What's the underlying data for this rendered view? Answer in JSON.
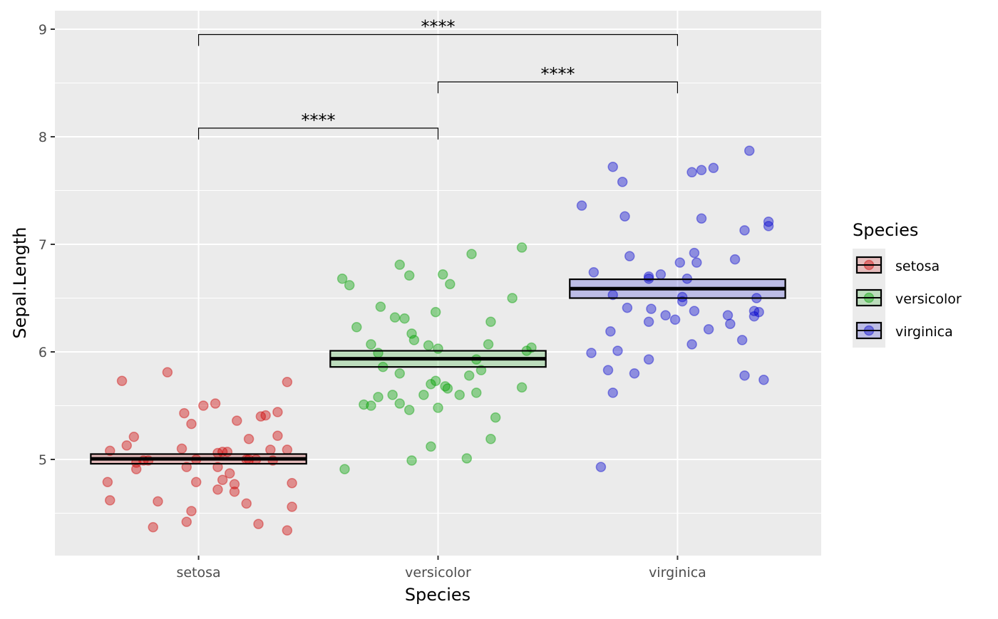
{
  "chart_data": {
    "type": "scatter",
    "subtype": "jitter with mean crossbar and significance brackets",
    "xlabel": "Species",
    "ylabel": "Sepal.Length",
    "categories": [
      "setosa",
      "versicolor",
      "virginica"
    ],
    "xlim": [
      0.4,
      3.6
    ],
    "ylim": [
      4.106,
      9.172
    ],
    "yticks": [
      5,
      6,
      7,
      8,
      9
    ],
    "ytick_labels": [
      "5",
      "6",
      "7",
      "8",
      "9"
    ],
    "grid": true,
    "legend": {
      "title": "Species",
      "placement": "right",
      "entries": [
        "setosa",
        "versicolor",
        "virginica"
      ]
    },
    "colors": {
      "setosa": "#CD0000",
      "versicolor": "#00A000",
      "virginica": "#0000CD",
      "panel": "#EBEBEB",
      "grid": "#FFFFFF"
    },
    "crossbars": [
      {
        "group": "setosa",
        "mean": 5.006,
        "lower": 4.96,
        "upper": 5.05
      },
      {
        "group": "versicolor",
        "mean": 5.936,
        "lower": 5.86,
        "upper": 6.01
      },
      {
        "group": "virginica",
        "mean": 6.588,
        "lower": 6.5,
        "upper": 6.675
      }
    ],
    "comparisons": [
      {
        "from": 1,
        "to": 2,
        "y": 8.08,
        "label": "****"
      },
      {
        "from": 2,
        "to": 3,
        "y": 8.51,
        "label": "****"
      },
      {
        "from": 1,
        "to": 3,
        "y": 8.95,
        "label": "****"
      }
    ],
    "series": [
      {
        "name": "setosa",
        "points": [
          [
            0.68,
            5.73
          ],
          [
            0.87,
            5.81
          ],
          [
            0.63,
            5.08
          ],
          [
            0.7,
            5.13
          ],
          [
            0.73,
            5.21
          ],
          [
            0.93,
            5.1
          ],
          [
            0.94,
            5.43
          ],
          [
            0.97,
            5.33
          ],
          [
            1.02,
            5.5
          ],
          [
            1.07,
            5.52
          ],
          [
            1.16,
            5.36
          ],
          [
            1.26,
            5.4
          ],
          [
            1.28,
            5.41
          ],
          [
            1.33,
            5.44
          ],
          [
            1.37,
            5.72
          ],
          [
            1.33,
            5.22
          ],
          [
            1.21,
            5.19
          ],
          [
            1.08,
            5.06
          ],
          [
            1.1,
            5.07
          ],
          [
            1.12,
            5.07
          ],
          [
            1.21,
            5.0
          ],
          [
            1.24,
            5.0
          ],
          [
            1.3,
            5.09
          ],
          [
            1.37,
            5.09
          ],
          [
            0.74,
            4.97
          ],
          [
            0.77,
            4.99
          ],
          [
            0.79,
            4.99
          ],
          [
            0.74,
            4.91
          ],
          [
            0.95,
            4.93
          ],
          [
            1.08,
            4.93
          ],
          [
            0.62,
            4.79
          ],
          [
            0.63,
            4.62
          ],
          [
            0.83,
            4.61
          ],
          [
            0.81,
            4.37
          ],
          [
            0.95,
            4.42
          ],
          [
            0.97,
            4.52
          ],
          [
            0.99,
            4.79
          ],
          [
            1.08,
            4.72
          ],
          [
            1.1,
            4.81
          ],
          [
            1.13,
            4.87
          ],
          [
            1.15,
            4.77
          ],
          [
            1.15,
            4.7
          ],
          [
            1.2,
            4.59
          ],
          [
            1.25,
            4.4
          ],
          [
            1.31,
            4.99
          ],
          [
            1.37,
            4.34
          ],
          [
            1.39,
            4.78
          ],
          [
            1.39,
            4.56
          ],
          [
            0.99,
            5.0
          ],
          [
            1.2,
            5.0
          ]
        ]
      },
      {
        "name": "versicolor",
        "points": [
          [
            1.6,
            6.68
          ],
          [
            1.63,
            6.62
          ],
          [
            1.66,
            6.23
          ],
          [
            1.76,
            6.42
          ],
          [
            1.84,
            6.81
          ],
          [
            1.88,
            6.71
          ],
          [
            1.82,
            6.32
          ],
          [
            1.86,
            6.31
          ],
          [
            1.89,
            6.17
          ],
          [
            1.9,
            6.11
          ],
          [
            1.99,
            6.37
          ],
          [
            2.02,
            6.72
          ],
          [
            2.05,
            6.63
          ],
          [
            2.14,
            6.91
          ],
          [
            2.35,
            6.97
          ],
          [
            2.31,
            6.5
          ],
          [
            2.22,
            6.28
          ],
          [
            2.21,
            6.07
          ],
          [
            2.39,
            6.04
          ],
          [
            2.37,
            6.01
          ],
          [
            1.72,
            6.07
          ],
          [
            1.75,
            5.99
          ],
          [
            1.77,
            5.86
          ],
          [
            1.84,
            5.8
          ],
          [
            1.96,
            6.06
          ],
          [
            2.0,
            6.03
          ],
          [
            2.16,
            5.93
          ],
          [
            2.18,
            5.83
          ],
          [
            2.13,
            5.78
          ],
          [
            2.03,
            5.68
          ],
          [
            2.04,
            5.66
          ],
          [
            1.99,
            5.73
          ],
          [
            1.97,
            5.7
          ],
          [
            1.94,
            5.6
          ],
          [
            2.09,
            5.6
          ],
          [
            2.16,
            5.62
          ],
          [
            1.75,
            5.58
          ],
          [
            1.81,
            5.6
          ],
          [
            1.69,
            5.51
          ],
          [
            1.72,
            5.5
          ],
          [
            1.84,
            5.52
          ],
          [
            1.88,
            5.46
          ],
          [
            2.0,
            5.48
          ],
          [
            2.24,
            5.39
          ],
          [
            2.22,
            5.19
          ],
          [
            1.97,
            5.12
          ],
          [
            1.89,
            4.99
          ],
          [
            2.12,
            5.01
          ],
          [
            1.61,
            4.91
          ],
          [
            2.35,
            5.67
          ]
        ]
      },
      {
        "name": "virginica",
        "points": [
          [
            2.6,
            7.36
          ],
          [
            2.73,
            7.72
          ],
          [
            2.77,
            7.58
          ],
          [
            2.78,
            7.26
          ],
          [
            2.65,
            6.74
          ],
          [
            2.8,
            6.89
          ],
          [
            2.73,
            6.53
          ],
          [
            2.79,
            6.41
          ],
          [
            2.88,
            6.68
          ],
          [
            2.88,
            6.7
          ],
          [
            2.93,
            6.72
          ],
          [
            2.89,
            6.4
          ],
          [
            2.88,
            6.28
          ],
          [
            2.95,
            6.34
          ],
          [
            2.99,
            6.3
          ],
          [
            3.01,
            6.83
          ],
          [
            3.04,
            6.68
          ],
          [
            3.02,
            6.51
          ],
          [
            3.02,
            6.47
          ],
          [
            3.07,
            6.92
          ],
          [
            3.08,
            6.83
          ],
          [
            3.07,
            6.38
          ],
          [
            3.13,
            6.21
          ],
          [
            3.06,
            6.07
          ],
          [
            3.06,
            7.67
          ],
          [
            3.1,
            7.69
          ],
          [
            3.15,
            7.71
          ],
          [
            3.1,
            7.24
          ],
          [
            3.3,
            7.87
          ],
          [
            3.28,
            7.13
          ],
          [
            3.38,
            7.21
          ],
          [
            3.38,
            7.17
          ],
          [
            3.24,
            6.86
          ],
          [
            3.33,
            6.5
          ],
          [
            3.21,
            6.34
          ],
          [
            3.22,
            6.26
          ],
          [
            3.32,
            6.38
          ],
          [
            3.32,
            6.33
          ],
          [
            3.34,
            6.37
          ],
          [
            3.27,
            6.11
          ],
          [
            3.28,
            5.78
          ],
          [
            3.36,
            5.74
          ],
          [
            2.64,
            5.99
          ],
          [
            2.75,
            6.01
          ],
          [
            2.72,
            6.19
          ],
          [
            2.88,
            5.93
          ],
          [
            2.82,
            5.8
          ],
          [
            2.71,
            5.83
          ],
          [
            2.73,
            5.62
          ],
          [
            2.68,
            4.93
          ]
        ]
      }
    ]
  }
}
